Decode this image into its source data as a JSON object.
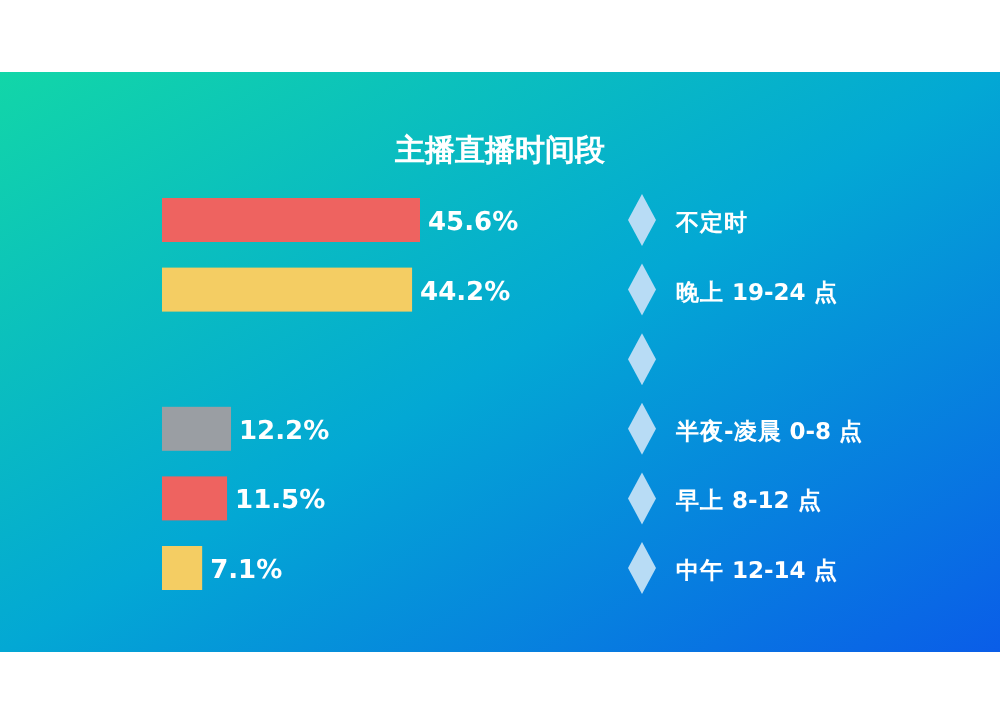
{
  "chart_data": {
    "type": "bar",
    "orientation": "horizontal",
    "title": "主播直播时间段",
    "categories": [
      "不定时",
      "晚上 19-24 点",
      null,
      "半夜-凌晨 0-8 点",
      "早上 8-12 点",
      "中午 12-14 点"
    ],
    "values": [
      45.6,
      44.2,
      null,
      12.2,
      11.5,
      7.1
    ],
    "value_labels": [
      "45.6%",
      "44.2%",
      null,
      "12.2%",
      "11.5%",
      "7.1%"
    ],
    "colors": [
      "#ee6360",
      "#f4cd63",
      null,
      "#9a9ea3",
      "#ee6360",
      "#f4cd63"
    ]
  }
}
